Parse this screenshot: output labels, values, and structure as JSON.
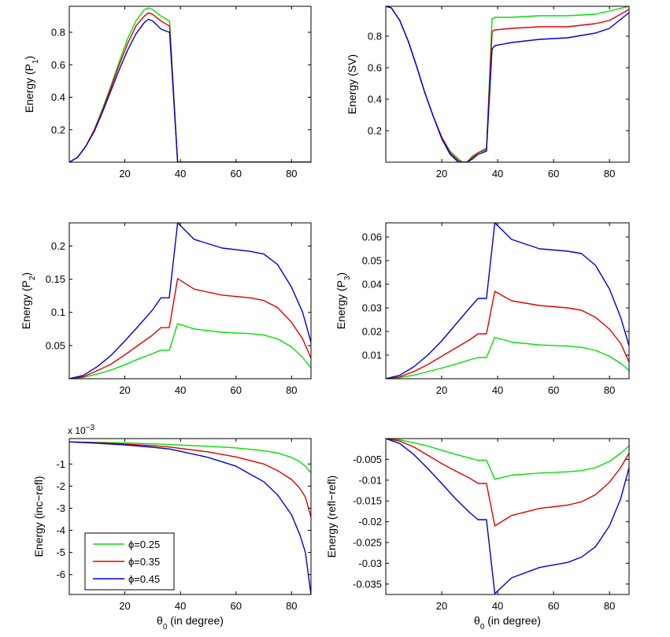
{
  "colors": {
    "green": "#00e000",
    "red": "#e00000",
    "blue": "#0000d0"
  },
  "legend": [
    {
      "label": "ϕ=0.25",
      "color": "#00e000"
    },
    {
      "label": "ϕ=0.35",
      "color": "#e00000"
    },
    {
      "label": "ϕ=0.45",
      "color": "#0000d0"
    }
  ],
  "chart_data": [
    {
      "id": "p1",
      "type": "line",
      "ylabel": "Energy (P",
      "ylabel_sub": "1",
      "ylabel_end": ")",
      "xlabel": "",
      "xlim": [
        0,
        87
      ],
      "ylim": [
        0,
        0.96
      ],
      "xticks": [
        "20",
        "40",
        "60",
        "80"
      ],
      "xtick_values": [
        20,
        40,
        60,
        80
      ],
      "yticks": [
        "0.2",
        "0.4",
        "0.6",
        "0.8"
      ],
      "ytick_values": [
        0.2,
        0.4,
        0.6,
        0.8
      ],
      "series": [
        {
          "name": "ϕ=0.25",
          "color": "#00e000",
          "x": [
            0,
            3,
            6,
            9,
            12,
            15,
            18,
            21,
            24,
            27,
            28.5,
            30,
            33,
            36,
            36.1,
            39,
            40,
            87
          ],
          "y": [
            0,
            0.03,
            0.1,
            0.2,
            0.33,
            0.47,
            0.62,
            0.76,
            0.87,
            0.94,
            0.95,
            0.94,
            0.9,
            0.87,
            0.87,
            0.0,
            0.0,
            0.0
          ]
        },
        {
          "name": "ϕ=0.35",
          "color": "#e00000",
          "x": [
            0,
            3,
            6,
            9,
            12,
            15,
            18,
            21,
            24,
            27,
            28.5,
            30,
            33,
            36,
            36.1,
            39,
            40,
            87
          ],
          "y": [
            0,
            0.03,
            0.1,
            0.2,
            0.32,
            0.46,
            0.6,
            0.73,
            0.84,
            0.9,
            0.92,
            0.91,
            0.87,
            0.84,
            0.84,
            0.0,
            0.0,
            0.0
          ]
        },
        {
          "name": "ϕ=0.45",
          "color": "#0000d0",
          "x": [
            0,
            3,
            6,
            9,
            12,
            15,
            18,
            21,
            24,
            27,
            28.5,
            30,
            33,
            36,
            36.1,
            39,
            40,
            87
          ],
          "y": [
            0,
            0.03,
            0.1,
            0.19,
            0.31,
            0.44,
            0.57,
            0.69,
            0.79,
            0.86,
            0.88,
            0.87,
            0.82,
            0.8,
            0.8,
            0.0,
            0.0,
            0.0
          ]
        }
      ]
    },
    {
      "id": "sv",
      "type": "line",
      "ylabel": "Energy (SV)",
      "ylabel_sub": "",
      "ylabel_end": "",
      "xlabel": "",
      "xlim": [
        0,
        87
      ],
      "ylim": [
        0,
        0.99
      ],
      "xticks": [
        "20",
        "40",
        "60",
        "80"
      ],
      "xtick_values": [
        20,
        40,
        60,
        80
      ],
      "yticks": [
        "0.2",
        "0.4",
        "0.6",
        "0.8"
      ],
      "ytick_values": [
        0.2,
        0.4,
        0.6,
        0.8
      ],
      "series": [
        {
          "name": "ϕ=0.25",
          "color": "#00e000",
          "x": [
            0,
            2,
            5,
            8,
            11,
            14,
            17,
            20,
            23,
            26,
            27.5,
            29,
            31,
            33,
            36,
            38,
            39,
            45,
            55,
            65,
            75,
            80,
            87
          ],
          "y": [
            0.99,
            0.98,
            0.9,
            0.77,
            0.61,
            0.44,
            0.29,
            0.16,
            0.07,
            0.02,
            0.0,
            0.0,
            0.04,
            0.06,
            0.09,
            0.91,
            0.92,
            0.92,
            0.93,
            0.93,
            0.94,
            0.96,
            0.99
          ]
        },
        {
          "name": "ϕ=0.35",
          "color": "#e00000",
          "x": [
            0,
            2,
            5,
            8,
            11,
            14,
            17,
            20,
            23,
            26,
            27.5,
            29,
            31,
            33,
            36,
            38,
            39,
            45,
            55,
            65,
            75,
            80,
            87
          ],
          "y": [
            0.99,
            0.98,
            0.9,
            0.77,
            0.61,
            0.44,
            0.29,
            0.16,
            0.06,
            0.01,
            0.0,
            0.0,
            0.03,
            0.06,
            0.08,
            0.83,
            0.84,
            0.85,
            0.86,
            0.86,
            0.88,
            0.9,
            0.97
          ]
        },
        {
          "name": "ϕ=0.45",
          "color": "#0000d0",
          "x": [
            0,
            2,
            5,
            8,
            11,
            14,
            17,
            20,
            23,
            26,
            27.5,
            29,
            31,
            33,
            36,
            38,
            39,
            45,
            55,
            65,
            75,
            80,
            87
          ],
          "y": [
            0.99,
            0.98,
            0.9,
            0.77,
            0.61,
            0.44,
            0.29,
            0.15,
            0.05,
            0.0,
            0.0,
            0.0,
            0.02,
            0.05,
            0.07,
            0.72,
            0.74,
            0.76,
            0.78,
            0.79,
            0.82,
            0.85,
            0.95
          ]
        }
      ]
    },
    {
      "id": "p2",
      "type": "line",
      "ylabel": "Energy (P",
      "ylabel_sub": "2",
      "ylabel_end": ")",
      "xlabel": "",
      "xlim": [
        0,
        87
      ],
      "ylim": [
        0,
        0.235
      ],
      "xticks": [
        "20",
        "40",
        "60",
        "80"
      ],
      "xtick_values": [
        20,
        40,
        60,
        80
      ],
      "yticks": [
        "0.05",
        "0.1",
        "0.15",
        "0.2"
      ],
      "ytick_values": [
        0.05,
        0.1,
        0.15,
        0.2
      ],
      "series": [
        {
          "name": "ϕ=0.25",
          "color": "#00e000",
          "x": [
            0,
            5,
            10,
            15,
            20,
            25,
            30,
            33,
            36,
            39,
            45,
            55,
            65,
            70,
            75,
            80,
            84,
            87
          ],
          "y": [
            0,
            0.002,
            0.007,
            0.013,
            0.021,
            0.03,
            0.038,
            0.043,
            0.043,
            0.083,
            0.075,
            0.07,
            0.068,
            0.066,
            0.06,
            0.048,
            0.032,
            0.016
          ]
        },
        {
          "name": "ϕ=0.35",
          "color": "#e00000",
          "x": [
            0,
            5,
            10,
            15,
            20,
            25,
            30,
            33,
            36,
            39,
            45,
            55,
            65,
            70,
            75,
            80,
            84,
            87
          ],
          "y": [
            0,
            0.003,
            0.012,
            0.022,
            0.036,
            0.051,
            0.066,
            0.077,
            0.077,
            0.151,
            0.135,
            0.126,
            0.122,
            0.118,
            0.107,
            0.085,
            0.06,
            0.031
          ]
        },
        {
          "name": "ϕ=0.45",
          "color": "#0000d0",
          "x": [
            0,
            5,
            10,
            15,
            20,
            25,
            30,
            33,
            36,
            39,
            45,
            55,
            65,
            70,
            75,
            80,
            84,
            87
          ],
          "y": [
            0,
            0.005,
            0.018,
            0.035,
            0.057,
            0.08,
            0.104,
            0.122,
            0.122,
            0.235,
            0.21,
            0.197,
            0.192,
            0.188,
            0.172,
            0.138,
            0.1,
            0.055
          ]
        }
      ]
    },
    {
      "id": "p3",
      "type": "line",
      "ylabel": "Energy (P",
      "ylabel_sub": "3",
      "ylabel_end": ")",
      "xlabel": "",
      "xlim": [
        0,
        87
      ],
      "ylim": [
        0,
        0.066
      ],
      "xticks": [
        "20",
        "40",
        "60",
        "80"
      ],
      "xtick_values": [
        20,
        40,
        60,
        80
      ],
      "yticks": [
        "0.01",
        "0.02",
        "0.03",
        "0.04",
        "0.05",
        "0.06"
      ],
      "ytick_values": [
        0.01,
        0.02,
        0.03,
        0.04,
        0.05,
        0.06
      ],
      "series": [
        {
          "name": "ϕ=0.25",
          "color": "#00e000",
          "x": [
            0,
            5,
            10,
            15,
            20,
            25,
            30,
            33,
            36,
            39,
            45,
            55,
            65,
            70,
            75,
            80,
            84,
            87
          ],
          "y": [
            0,
            0.0005,
            0.0015,
            0.003,
            0.0045,
            0.0062,
            0.008,
            0.009,
            0.009,
            0.0175,
            0.0155,
            0.0143,
            0.0138,
            0.0133,
            0.012,
            0.0095,
            0.0065,
            0.0035
          ]
        },
        {
          "name": "ϕ=0.35",
          "color": "#e00000",
          "x": [
            0,
            5,
            10,
            15,
            20,
            25,
            30,
            33,
            36,
            39,
            45,
            55,
            65,
            70,
            75,
            80,
            84,
            87
          ],
          "y": [
            0,
            0.0008,
            0.003,
            0.006,
            0.0095,
            0.013,
            0.0165,
            0.019,
            0.019,
            0.037,
            0.033,
            0.031,
            0.03,
            0.029,
            0.026,
            0.021,
            0.015,
            0.007
          ]
        },
        {
          "name": "ϕ=0.45",
          "color": "#0000d0",
          "x": [
            0,
            5,
            10,
            15,
            20,
            25,
            30,
            33,
            36,
            39,
            45,
            55,
            65,
            70,
            75,
            80,
            84,
            87
          ],
          "y": [
            0,
            0.0015,
            0.005,
            0.01,
            0.016,
            0.023,
            0.03,
            0.034,
            0.034,
            0.066,
            0.059,
            0.055,
            0.054,
            0.053,
            0.048,
            0.038,
            0.026,
            0.014
          ]
        }
      ]
    },
    {
      "id": "increfl",
      "type": "line",
      "ylabel": "Energy (inc−refl)",
      "ylabel_sub": "",
      "ylabel_end": "",
      "exponent": "x 10",
      "exponent_sup": "−3",
      "xlabel": "θ",
      "xlabel_sub": "0",
      "xlabel_end": " (in degree)",
      "xlim": [
        0,
        87
      ],
      "ylim": [
        -6.9,
        0.15
      ],
      "xticks": [
        "20",
        "40",
        "60",
        "80"
      ],
      "xtick_values": [
        20,
        40,
        60,
        80
      ],
      "yticks": [
        "-6",
        "-5",
        "-4",
        "-3",
        "-2",
        "-1"
      ],
      "ytick_values": [
        -6,
        -5,
        -4,
        -3,
        -2,
        -1
      ],
      "series": [
        {
          "name": "ϕ=0.25",
          "color": "#00e000",
          "x": [
            0,
            10,
            20,
            30,
            36,
            39,
            50,
            60,
            70,
            75,
            80,
            83,
            85,
            87
          ],
          "y": [
            0,
            -0.02,
            -0.05,
            -0.09,
            -0.12,
            -0.14,
            -0.2,
            -0.27,
            -0.4,
            -0.5,
            -0.7,
            -0.9,
            -1.1,
            -1.4
          ]
        },
        {
          "name": "ϕ=0.35",
          "color": "#e00000",
          "x": [
            0,
            10,
            20,
            30,
            36,
            39,
            50,
            60,
            70,
            75,
            80,
            83,
            85,
            87
          ],
          "y": [
            0,
            -0.04,
            -0.1,
            -0.17,
            -0.23,
            -0.28,
            -0.45,
            -0.68,
            -1.0,
            -1.3,
            -1.7,
            -2.1,
            -2.5,
            -3.4
          ]
        },
        {
          "name": "ϕ=0.45",
          "color": "#0000d0",
          "x": [
            0,
            10,
            20,
            30,
            36,
            39,
            50,
            60,
            70,
            75,
            80,
            83,
            85,
            87
          ],
          "y": [
            0,
            -0.06,
            -0.14,
            -0.24,
            -0.32,
            -0.4,
            -0.7,
            -1.1,
            -1.8,
            -2.4,
            -3.3,
            -4.2,
            -5.0,
            -6.9
          ]
        }
      ]
    },
    {
      "id": "reflrefl",
      "type": "line",
      "ylabel": "Energy (refl−refl)",
      "ylabel_sub": "",
      "ylabel_end": "",
      "xlabel": "θ",
      "xlabel_sub": "0",
      "xlabel_end": " (in degree)",
      "xlim": [
        0,
        87
      ],
      "ylim": [
        -0.0375,
        0
      ],
      "xticks": [
        "20",
        "40",
        "60",
        "80"
      ],
      "xtick_values": [
        20,
        40,
        60,
        80
      ],
      "yticks": [
        "-0.035",
        "-0.03",
        "-0.025",
        "-0.02",
        "-0.015",
        "-0.01",
        "-0.005"
      ],
      "ytick_values": [
        -0.035,
        -0.03,
        -0.025,
        -0.02,
        -0.015,
        -0.01,
        -0.005
      ],
      "series": [
        {
          "name": "ϕ=0.25",
          "color": "#00e000",
          "x": [
            0,
            5,
            10,
            15,
            20,
            25,
            30,
            33,
            36,
            39,
            45,
            55,
            65,
            70,
            75,
            80,
            84,
            87
          ],
          "y": [
            0,
            -0.0003,
            -0.001,
            -0.0018,
            -0.0028,
            -0.0038,
            -0.0047,
            -0.0052,
            -0.0052,
            -0.0098,
            -0.0088,
            -0.0083,
            -0.008,
            -0.0077,
            -0.007,
            -0.0055,
            -0.0035,
            -0.0018
          ]
        },
        {
          "name": "ϕ=0.35",
          "color": "#e00000",
          "x": [
            0,
            5,
            10,
            15,
            20,
            25,
            30,
            33,
            36,
            39,
            45,
            55,
            65,
            70,
            75,
            80,
            84,
            87
          ],
          "y": [
            0,
            -0.0006,
            -0.002,
            -0.004,
            -0.006,
            -0.0078,
            -0.0095,
            -0.0108,
            -0.0108,
            -0.021,
            -0.0185,
            -0.0168,
            -0.016,
            -0.0152,
            -0.0135,
            -0.0105,
            -0.007,
            -0.0035
          ]
        },
        {
          "name": "ϕ=0.45",
          "color": "#0000d0",
          "x": [
            0,
            5,
            10,
            15,
            20,
            25,
            30,
            33,
            36,
            39,
            45,
            55,
            65,
            70,
            75,
            80,
            84,
            87
          ],
          "y": [
            0,
            -0.0012,
            -0.0038,
            -0.0072,
            -0.0108,
            -0.0145,
            -0.0178,
            -0.0195,
            -0.0195,
            -0.0373,
            -0.0335,
            -0.031,
            -0.0298,
            -0.0285,
            -0.026,
            -0.021,
            -0.0145,
            -0.007
          ]
        }
      ]
    }
  ]
}
